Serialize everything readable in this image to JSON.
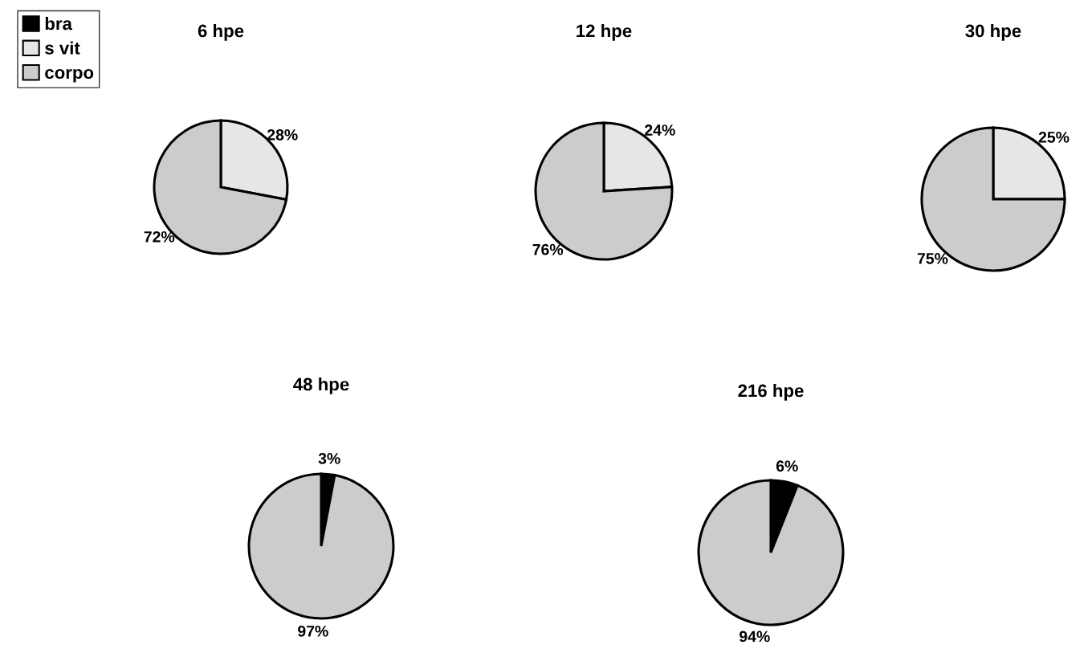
{
  "chart_data": [
    {
      "type": "pie",
      "title": "6 hpe",
      "categories": [
        "bra",
        "s vit",
        "corpo"
      ],
      "values": [
        0,
        28,
        72
      ],
      "value_labels": [
        null,
        "28%",
        "72%"
      ],
      "colors": [
        "#000000",
        "#e6e6e6",
        "#cccccc"
      ],
      "legend": "top left"
    },
    {
      "type": "pie",
      "title": "12 hpe",
      "categories": [
        null,
        null,
        null
      ],
      "values": [
        0,
        24,
        76
      ],
      "value_labels": [
        null,
        "24%",
        "76%"
      ],
      "colors": [
        "#000000",
        "#e6e6e6",
        "#cccccc"
      ]
    },
    {
      "type": "pie",
      "title": "30 hpe",
      "categories": [
        null,
        null,
        null
      ],
      "values": [
        0,
        25,
        75
      ],
      "value_labels": [
        null,
        "25%",
        "75%"
      ],
      "colors": [
        "#000000",
        "#e6e6e6",
        "#cccccc"
      ]
    },
    {
      "type": "pie",
      "title": "48 hpe",
      "categories": [
        null,
        null,
        null
      ],
      "values": [
        3,
        0,
        97
      ],
      "value_labels": [
        "3%",
        null,
        "97%"
      ],
      "colors": [
        "#000000",
        "#e6e6e6",
        "#cccccc"
      ]
    },
    {
      "type": "pie",
      "title": "216 hpe",
      "categories": [
        null,
        null,
        null
      ],
      "values": [
        6,
        0,
        94
      ],
      "value_labels": [
        "6%",
        null,
        "94%"
      ],
      "colors": [
        "#000000",
        "#e6e6e6",
        "#cccccc"
      ]
    }
  ]
}
